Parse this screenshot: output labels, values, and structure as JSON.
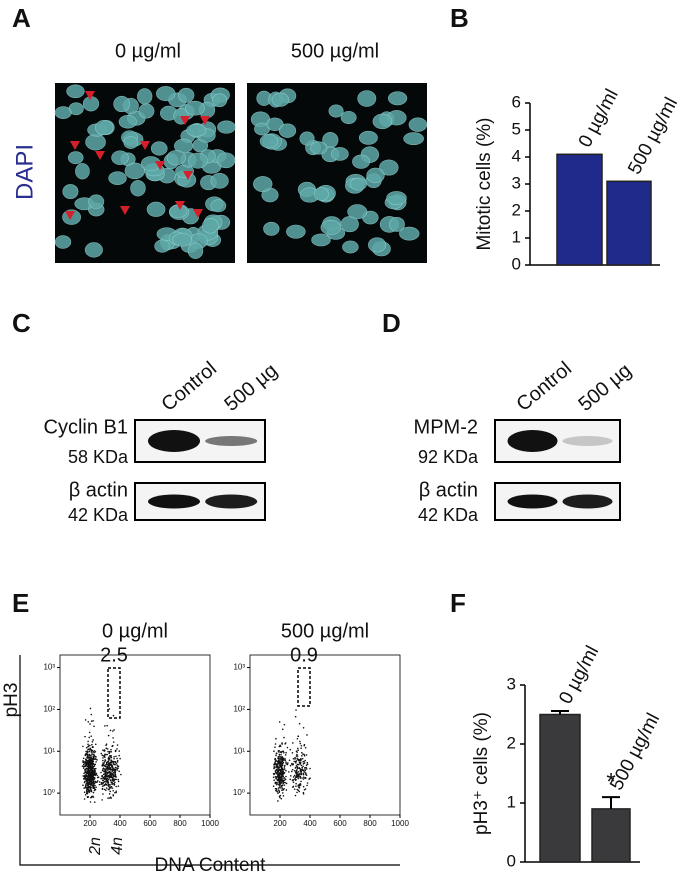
{
  "panel_labels": [
    "A",
    "B",
    "C",
    "D",
    "E",
    "F"
  ],
  "panel_a": {
    "conditions": [
      "0 µg/ml",
      "500 µg/ml"
    ],
    "stain": "DAPI"
  },
  "panel_c": {
    "lanes": [
      "Control",
      "500 µg"
    ],
    "blots": [
      {
        "label": "Cyclin B1",
        "size": "58 KDa"
      },
      {
        "label": "β actin",
        "size": "42 KDa"
      }
    ]
  },
  "panel_d": {
    "lanes": [
      "Control",
      "500 µg"
    ],
    "blots": [
      {
        "label": "MPM-2",
        "size": "92 KDa"
      },
      {
        "label": "β actin",
        "size": "42 KDa"
      }
    ]
  },
  "panel_e": {
    "conditions": [
      "0 µg/ml",
      "500 µg/ml"
    ],
    "gate_values": [
      "2.5",
      "0.9"
    ],
    "y_label": "pH3",
    "x_label": "DNA Content",
    "ploidy": [
      "2n",
      "4n"
    ],
    "xlim": [
      0,
      1000
    ],
    "xticks": [
      200,
      400,
      600,
      800,
      1000
    ],
    "ylim": [
      0.3,
      2000
    ],
    "log_y": true,
    "yticks": [
      {
        "value": 1,
        "label": "10⁰"
      },
      {
        "value": 10,
        "label": "10¹"
      },
      {
        "value": 100,
        "label": "10²"
      },
      {
        "value": 1000,
        "label": "10³"
      }
    ]
  },
  "chart_data": [
    {
      "type": "bar",
      "y_label": "Mitotic cells (%)",
      "categories": [
        "0 µg/ml",
        "500 µg/ml"
      ],
      "values": [
        4.1,
        3.1
      ],
      "color": "#1f2a8a",
      "ylim": [
        0,
        6
      ],
      "yticks": [
        0,
        1,
        2,
        3,
        4,
        5,
        6
      ]
    },
    {
      "type": "bar",
      "y_label": "pH3⁺ cells (%)",
      "categories": [
        "0 µg/ml",
        "500 µg/ml"
      ],
      "values": [
        2.5,
        0.9
      ],
      "errors": [
        0.06,
        0.2
      ],
      "color": "#3a3a3c",
      "ylim": [
        0,
        3
      ],
      "yticks": [
        0,
        1,
        2,
        3
      ],
      "annotation": "*"
    }
  ]
}
